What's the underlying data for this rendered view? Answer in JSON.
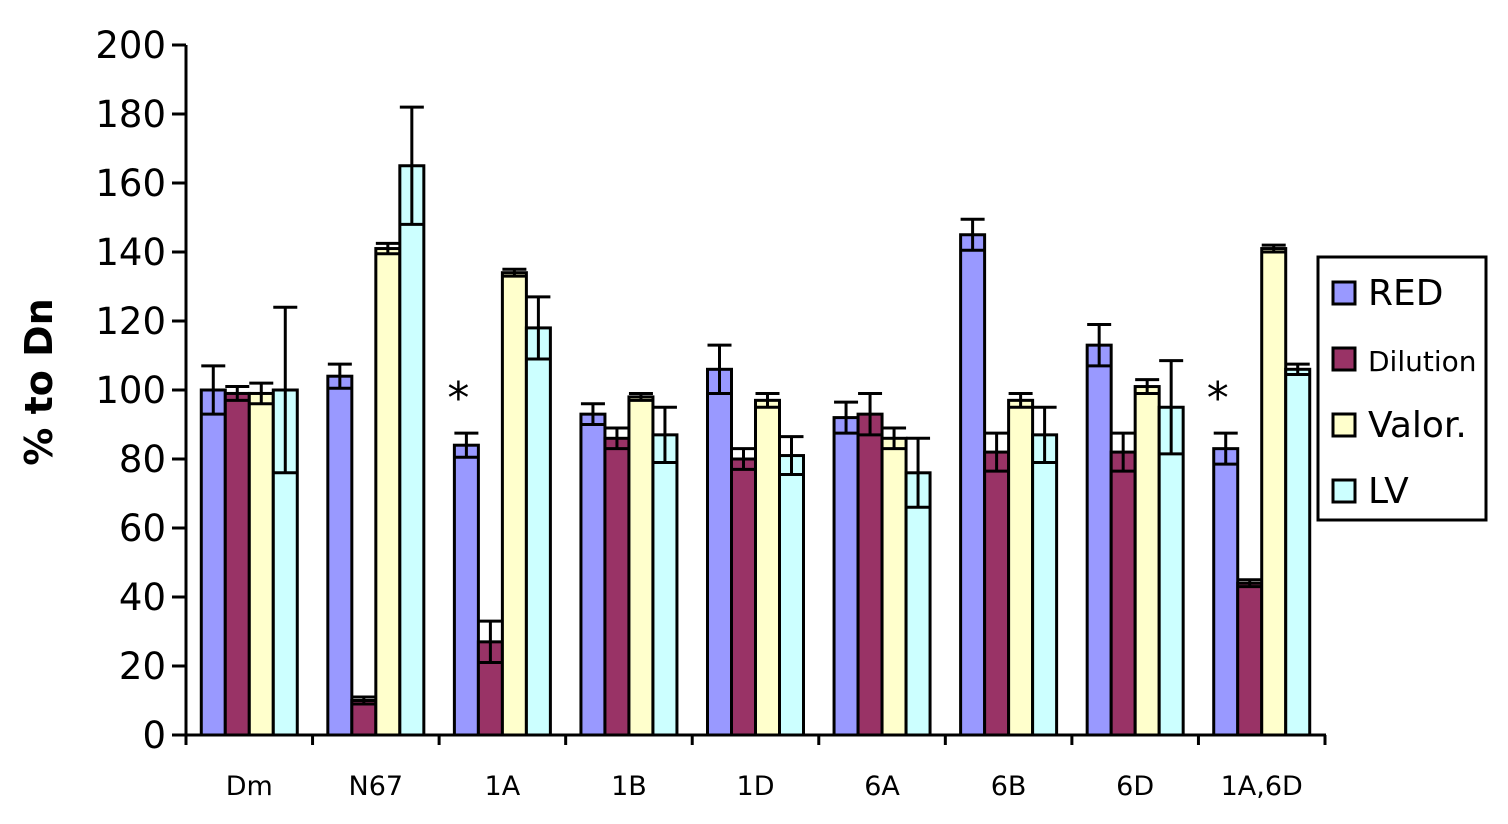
{
  "chart_data": {
    "type": "bar",
    "title": "",
    "xlabel": "",
    "ylabel": "% to Dn",
    "ylim": [
      0,
      200
    ],
    "yticks": [
      0,
      20,
      40,
      60,
      80,
      100,
      120,
      140,
      160,
      180,
      200
    ],
    "grid": false,
    "legend_position": "right",
    "categories": [
      "Dm",
      "N67",
      "1A",
      "1B",
      "1D",
      "6A",
      "6B",
      "6D",
      "1A,6D"
    ],
    "series": [
      {
        "name": "RED",
        "color": "#9999ff",
        "values": [
          100,
          104,
          84,
          93,
          106,
          92,
          145,
          113,
          83
        ],
        "errors": [
          7,
          3.5,
          3.5,
          3,
          7,
          4.5,
          4.5,
          6,
          4.5
        ]
      },
      {
        "name": "Dilution",
        "color": "#993366",
        "values": [
          99,
          10,
          27,
          86,
          80,
          93,
          82,
          82,
          44
        ],
        "errors": [
          2,
          1,
          6,
          3,
          3,
          6,
          5.5,
          5.5,
          1
        ]
      },
      {
        "name": "Valor.",
        "color": "#ffffcc",
        "values": [
          99,
          141,
          134,
          98,
          97,
          86,
          97,
          101,
          141
        ],
        "errors": [
          3,
          1.5,
          1,
          1,
          2,
          3,
          2,
          2,
          1
        ]
      },
      {
        "name": "LV",
        "color": "#ccffff",
        "values": [
          100,
          165,
          118,
          87,
          81,
          76,
          87,
          95,
          106
        ],
        "errors": [
          24,
          17,
          9,
          8,
          5.5,
          10,
          8,
          13.5,
          1.5
        ]
      }
    ],
    "annotations": [
      {
        "text": "*",
        "category": "1A"
      },
      {
        "text": "*",
        "category": "1A,6D"
      }
    ]
  }
}
